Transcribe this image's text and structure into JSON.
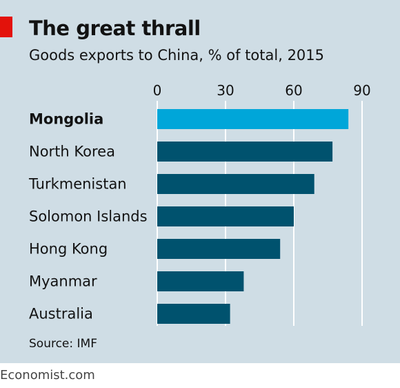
{
  "header": {
    "title": "The great thrall",
    "subtitle": "Goods exports to China, % of total, 2015"
  },
  "footer": {
    "source": "Source: IMF",
    "brand": "Economist.com"
  },
  "colors": {
    "background": "#cfdde5",
    "bar": "#00526e",
    "highlight": "#00a6d9",
    "accent": "#e3120b",
    "grid": "#ffffff"
  },
  "chart_data": {
    "type": "bar",
    "orientation": "horizontal",
    "categories": [
      "Mongolia",
      "North Korea",
      "Turkmenistan",
      "Solomon Islands",
      "Hong Kong",
      "Myanmar",
      "Australia"
    ],
    "values": [
      84,
      77,
      69,
      60,
      54,
      38,
      32
    ],
    "highlight_category": "Mongolia",
    "xlim": [
      0,
      90
    ],
    "xticks": [
      0,
      30,
      60,
      90
    ],
    "grid": true
  }
}
